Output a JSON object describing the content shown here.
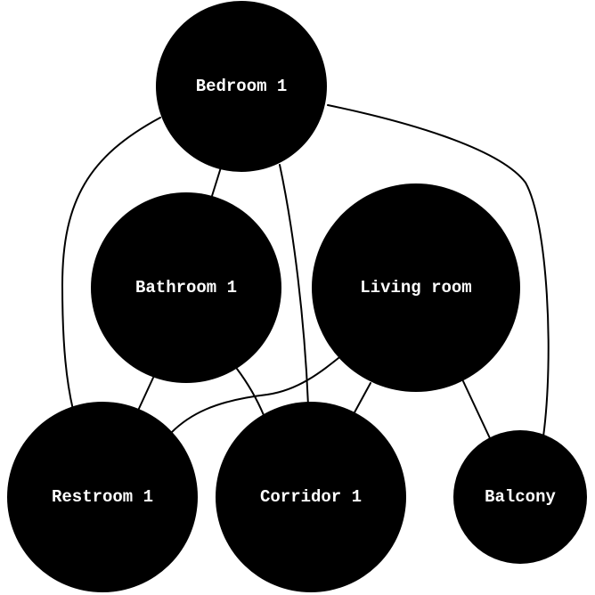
{
  "colors": {
    "node_fill": "#000000",
    "node_text": "#ffffff",
    "edge": "#000000",
    "background": "#ffffff"
  },
  "nodes": [
    {
      "id": "bedroom1",
      "label": "Bedroom 1"
    },
    {
      "id": "bathroom1",
      "label": "Bathroom 1"
    },
    {
      "id": "livingroom",
      "label": "Living room"
    },
    {
      "id": "restroom1",
      "label": "Restroom 1"
    },
    {
      "id": "corridor1",
      "label": "Corridor 1"
    },
    {
      "id": "balcony",
      "label": "Balcony"
    }
  ],
  "edges": [
    {
      "from": "bedroom1",
      "to": "bathroom1"
    },
    {
      "from": "bedroom1",
      "to": "restroom1"
    },
    {
      "from": "bedroom1",
      "to": "corridor1"
    },
    {
      "from": "bedroom1",
      "to": "balcony"
    },
    {
      "from": "bathroom1",
      "to": "restroom1"
    },
    {
      "from": "bathroom1",
      "to": "corridor1"
    },
    {
      "from": "livingroom",
      "to": "restroom1"
    },
    {
      "from": "livingroom",
      "to": "corridor1"
    },
    {
      "from": "livingroom",
      "to": "balcony"
    }
  ]
}
